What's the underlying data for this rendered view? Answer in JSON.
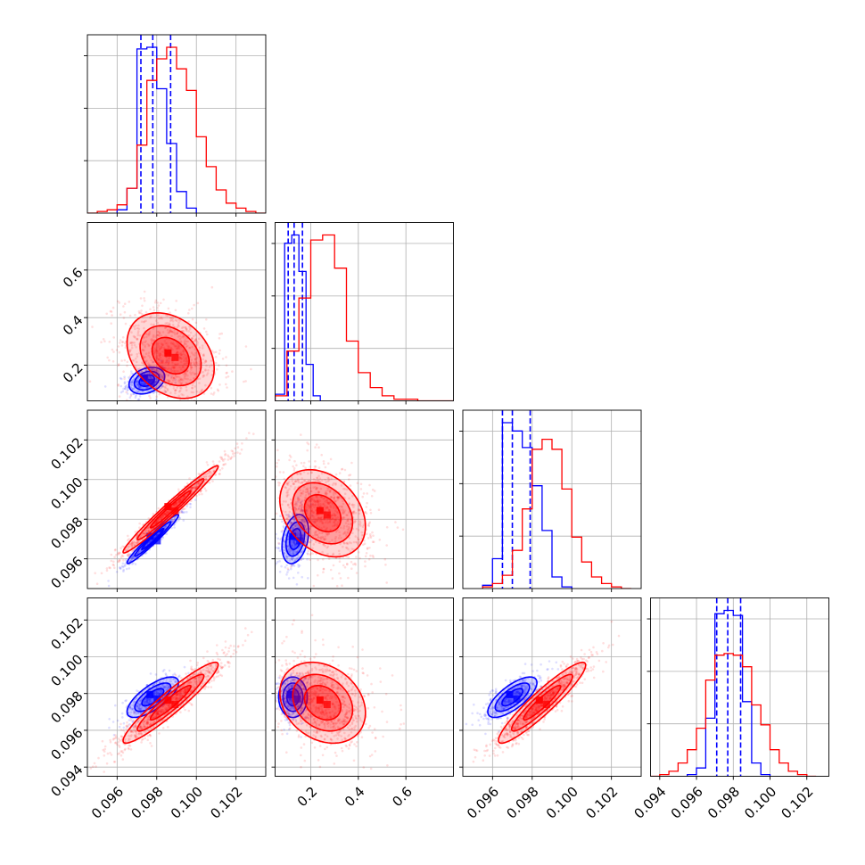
{
  "colors": {
    "series_a": "#0000ff",
    "series_b": "#ff0000",
    "grid": "#b0b0b0",
    "frame": "#000000",
    "background": "#ffffff"
  },
  "chart_data": {
    "type": "corner",
    "grid": true,
    "parameter_count": 4,
    "axis_ranges": [
      [
        0.0945,
        0.1035
      ],
      [
        0.05,
        0.8
      ],
      [
        0.0945,
        0.1035
      ],
      [
        0.0935,
        0.1032
      ]
    ],
    "bottom_tick_labels": [
      [
        "0.096",
        "0.098",
        "0.100",
        "0.102"
      ],
      [
        "0.2",
        "0.4",
        "0.6"
      ],
      [
        "0.096",
        "0.098",
        "0.100",
        "0.102"
      ],
      [
        "0.094",
        "0.096",
        "0.098",
        "0.100",
        "0.102"
      ]
    ],
    "left_tick_labels": [
      [],
      [
        "0.2",
        "0.4",
        "0.6"
      ],
      [
        "0.096",
        "0.098",
        "0.100",
        "0.102"
      ],
      [
        "0.094",
        "0.096",
        "0.098",
        "0.100",
        "0.102"
      ]
    ],
    "series": [
      {
        "color": "#0000ff",
        "marginals": [
          {
            "bin_edges": [
              0.096,
              0.0965,
              0.097,
              0.0975,
              0.098,
              0.0985,
              0.099,
              0.0995,
              0.1
            ],
            "counts": [
              0.02,
              0.15,
              0.99,
              1.0,
              0.75,
              0.42,
              0.13,
              0.03
            ],
            "quantiles": [
              0.0972,
              0.0978,
              0.0987
            ]
          },
          {
            "bin_edges": [
              0.05,
              0.09,
              0.12,
              0.15,
              0.18,
              0.21,
              0.24
            ],
            "counts": [
              0.04,
              0.95,
              1.0,
              0.78,
              0.22,
              0.03
            ],
            "quantiles": [
              0.105,
              0.13,
              0.165
            ]
          },
          {
            "bin_edges": [
              0.0955,
              0.096,
              0.0965,
              0.097,
              0.0975,
              0.098,
              0.0985,
              0.099,
              0.0995,
              0.1
            ],
            "counts": [
              0.02,
              0.18,
              1.0,
              0.95,
              0.85,
              0.62,
              0.35,
              0.07,
              0.01
            ],
            "quantiles": [
              0.0965,
              0.097,
              0.0979
            ]
          },
          {
            "bin_edges": [
              0.0955,
              0.096,
              0.0965,
              0.097,
              0.0975,
              0.098,
              0.0985,
              0.099,
              0.0995,
              0.1
            ],
            "counts": [
              0.01,
              0.05,
              0.35,
              0.98,
              1.0,
              0.97,
              0.45,
              0.08,
              0.01
            ],
            "quantiles": [
              0.0971,
              0.0977,
              0.0984
            ]
          }
        ],
        "pairs": [
          {
            "mean": [
              0.0975,
              0.135
            ],
            "sd": [
              0.00045,
              0.028
            ],
            "rho": 0.3
          },
          {
            "mean": [
              0.0978,
              0.097
            ],
            "sd": [
              0.00065,
              0.00062
            ],
            "rho": 0.97
          },
          {
            "mean": [
              0.135,
              0.097
            ],
            "sd": [
              0.028,
              0.00062
            ],
            "rho": 0.3
          },
          {
            "mean": [
              0.0978,
              0.0978
            ],
            "sd": [
              0.00065,
              0.00055
            ],
            "rho": 0.72
          },
          {
            "mean": [
              0.125,
              0.0978
            ],
            "sd": [
              0.03,
              0.00055
            ],
            "rho": 0.0
          },
          {
            "mean": [
              0.097,
              0.0978
            ],
            "sd": [
              0.00062,
              0.00055
            ],
            "rho": 0.72
          }
        ]
      },
      {
        "color": "#ff0000",
        "marginals": [
          {
            "bin_edges": [
              0.0945,
              0.095,
              0.0955,
              0.096,
              0.0965,
              0.097,
              0.0975,
              0.098,
              0.0985,
              0.099,
              0.0995,
              0.1,
              0.1005,
              0.101,
              0.1015,
              0.102,
              0.1025,
              0.103,
              0.1035
            ],
            "counts": [
              0.0,
              0.01,
              0.02,
              0.05,
              0.15,
              0.41,
              0.8,
              0.93,
              1.0,
              0.87,
              0.74,
              0.46,
              0.28,
              0.14,
              0.06,
              0.03,
              0.01,
              0.0
            ],
            "quantiles": []
          },
          {
            "bin_edges": [
              0.05,
              0.1,
              0.15,
              0.2,
              0.25,
              0.3,
              0.35,
              0.4,
              0.45,
              0.5,
              0.55,
              0.6,
              0.65,
              0.7,
              0.75,
              0.8
            ],
            "counts": [
              0.03,
              0.3,
              0.62,
              0.97,
              1.0,
              0.8,
              0.36,
              0.17,
              0.08,
              0.03,
              0.01,
              0.01,
              0.0,
              0.0,
              0.0
            ],
            "quantiles": []
          },
          {
            "bin_edges": [
              0.0955,
              0.096,
              0.0965,
              0.097,
              0.0975,
              0.098,
              0.0985,
              0.099,
              0.0995,
              0.1,
              0.1005,
              0.101,
              0.1015,
              0.102,
              0.1025,
              0.103
            ],
            "counts": [
              0.01,
              0.03,
              0.08,
              0.23,
              0.48,
              0.84,
              0.9,
              0.84,
              0.6,
              0.31,
              0.16,
              0.07,
              0.03,
              0.01,
              0.0
            ],
            "quantiles": []
          },
          {
            "bin_edges": [
              0.0935,
              0.094,
              0.0945,
              0.095,
              0.0955,
              0.096,
              0.0965,
              0.097,
              0.0975,
              0.098,
              0.0985,
              0.099,
              0.0995,
              0.1,
              0.1005,
              0.101,
              0.1015,
              0.102,
              0.1025
            ],
            "counts": [
              0.0,
              0.01,
              0.03,
              0.08,
              0.16,
              0.29,
              0.58,
              0.73,
              0.74,
              0.73,
              0.66,
              0.43,
              0.31,
              0.16,
              0.08,
              0.03,
              0.01,
              0.0
            ],
            "quantiles": []
          }
        ],
        "pairs": [
          {
            "mean": [
              0.0987,
              0.24
            ],
            "sd": [
              0.0011,
              0.09
            ],
            "rho": -0.3
          },
          {
            "mean": [
              0.0987,
              0.0985
            ],
            "sd": [
              0.0012,
              0.0011
            ],
            "rho": 0.98
          },
          {
            "mean": [
              0.25,
              0.0983
            ],
            "sd": [
              0.09,
              0.0011
            ],
            "rho": -0.3
          },
          {
            "mean": [
              0.0987,
              0.0975
            ],
            "sd": [
              0.0012,
              0.0011
            ],
            "rho": 0.94
          },
          {
            "mean": [
              0.25,
              0.0975
            ],
            "sd": [
              0.09,
              0.0011
            ],
            "rho": -0.25
          },
          {
            "mean": [
              0.0985,
              0.0975
            ],
            "sd": [
              0.0011,
              0.0011
            ],
            "rho": 0.93
          }
        ]
      }
    ]
  }
}
